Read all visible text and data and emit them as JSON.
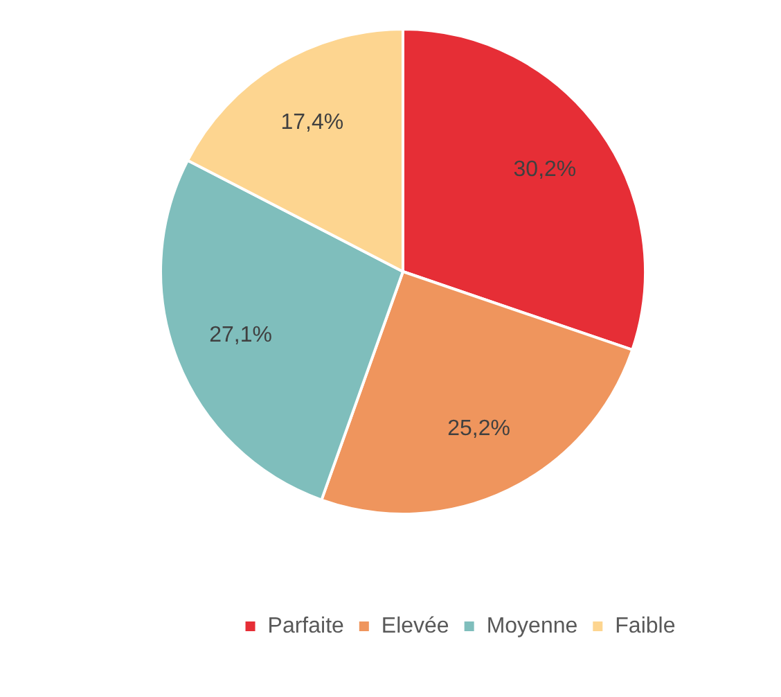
{
  "chart_data": {
    "type": "pie",
    "categories": [
      "Parfaite",
      "Elevée",
      "Moyenne",
      "Faible"
    ],
    "values": [
      30.2,
      25.2,
      27.1,
      17.4
    ],
    "colors": [
      "#e62e36",
      "#ef955d",
      "#7fbebc",
      "#fdd590"
    ],
    "value_labels": [
      "30,2%",
      "25,2%",
      "27,1%",
      "17,4%"
    ],
    "legend": "bottom"
  }
}
